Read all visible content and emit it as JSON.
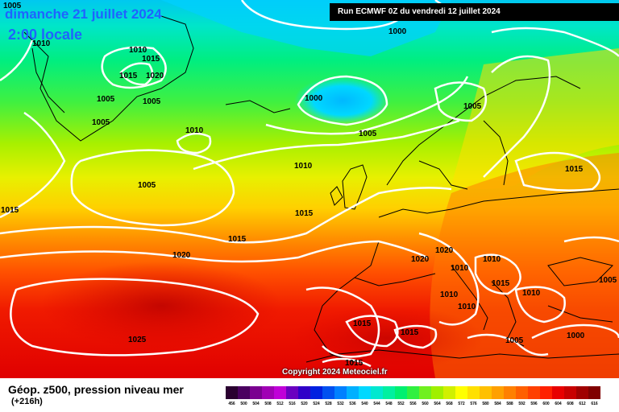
{
  "header": {
    "date": "dimanche 21 juillet 2024",
    "time": "2:00 locale",
    "run": "Run ECMWF 0Z du vendredi 12 juillet 2024"
  },
  "copyright": "Copyright 2024 Meteociel.fr",
  "footer": {
    "title": "Géop. z500, pression niveau mer",
    "subtitle": "(+216h)"
  },
  "isobar_labels": [
    {
      "text": "1005",
      "name": "isobar-label-1005-greenland-nw"
    },
    {
      "text": "1010",
      "name": "isobar-label-1010-greenland-w"
    },
    {
      "text": "1010",
      "name": "isobar-label-1010-greenland-c"
    },
    {
      "text": "1015",
      "name": "isobar-label-1015-greenland-c"
    },
    {
      "text": "1015",
      "name": "isobar-label-1015-greenland-s"
    },
    {
      "text": "1020",
      "name": "isobar-label-1020-greenland"
    },
    {
      "text": "1005",
      "name": "isobar-label-1005-greenland-sw"
    },
    {
      "text": "1005",
      "name": "isobar-label-1005-greenland-se"
    },
    {
      "text": "1005",
      "name": "isobar-label-1005-greenland-s"
    },
    {
      "text": "1010",
      "name": "isobar-label-1010-atlantic-n"
    },
    {
      "text": "1000",
      "name": "isobar-label-1000-iceland-n"
    },
    {
      "text": "1000",
      "name": "isobar-label-1000-iceland-low"
    },
    {
      "text": "1005",
      "name": "isobar-label-1005-norwegian-sea"
    },
    {
      "text": "1005",
      "name": "isobar-label-1005-scandinavia"
    },
    {
      "text": "1010",
      "name": "isobar-label-1010-north-atlantic"
    },
    {
      "text": "1005",
      "name": "isobar-label-1005-atlantic-w"
    },
    {
      "text": "1015",
      "name": "isobar-label-1015-west-edge"
    },
    {
      "text": "1015",
      "name": "isobar-label-1015-uk"
    },
    {
      "text": "1015",
      "name": "isobar-label-1015-russia"
    },
    {
      "text": "1015",
      "name": "isobar-label-1015-mid-atlantic"
    },
    {
      "text": "1020",
      "name": "isobar-label-1020-atlantic"
    },
    {
      "text": "1020",
      "name": "isobar-label-1020-france-n"
    },
    {
      "text": "1020",
      "name": "isobar-label-1020-france"
    },
    {
      "text": "1010",
      "name": "isobar-label-1010-alps"
    },
    {
      "text": "1010",
      "name": "isobar-label-1010-balkans-n"
    },
    {
      "text": "1015",
      "name": "isobar-label-1015-adriatic"
    },
    {
      "text": "1005",
      "name": "isobar-label-1005-ukraine"
    },
    {
      "text": "1010",
      "name": "isobar-label-1010-italy-a"
    },
    {
      "text": "1010",
      "name": "isobar-label-1010-italy-b"
    },
    {
      "text": "1010",
      "name": "isobar-label-1010-balkans"
    },
    {
      "text": "1025",
      "name": "isobar-label-1025-azores"
    },
    {
      "text": "1015",
      "name": "isobar-label-1015-iberia"
    },
    {
      "text": "1015",
      "name": "isobar-label-1015-mediterranean"
    },
    {
      "text": "1015",
      "name": "isobar-label-1015-north-africa"
    },
    {
      "text": "1005",
      "name": "isobar-label-1005-aegean"
    },
    {
      "text": "1000",
      "name": "isobar-label-1000-turkey"
    }
  ],
  "scale": {
    "colors": [
      "#2a0030",
      "#4a0060",
      "#7a0090",
      "#a000b4",
      "#c000d8",
      "#6a00c0",
      "#3000c8",
      "#0020e0",
      "#0050f0",
      "#0080ff",
      "#00b0ff",
      "#00d8ff",
      "#00e8d0",
      "#00f0a0",
      "#00f070",
      "#30f040",
      "#70f020",
      "#a0f000",
      "#d0f000",
      "#ffff00",
      "#ffe000",
      "#ffc000",
      "#ffa000",
      "#ff8000",
      "#ff6000",
      "#ff4000",
      "#ff2000",
      "#e80000",
      "#c80000",
      "#a00000",
      "#800000",
      "#600000",
      "#400000"
    ],
    "labels": [
      "456",
      "500",
      "504",
      "508",
      "512",
      "516",
      "520",
      "524",
      "528",
      "532",
      "536",
      "540",
      "544",
      "548",
      "552",
      "556",
      "560",
      "564",
      "568",
      "572",
      "576",
      "580",
      "584",
      "588",
      "592",
      "596",
      "600",
      "604",
      "608",
      "612",
      "616"
    ]
  }
}
